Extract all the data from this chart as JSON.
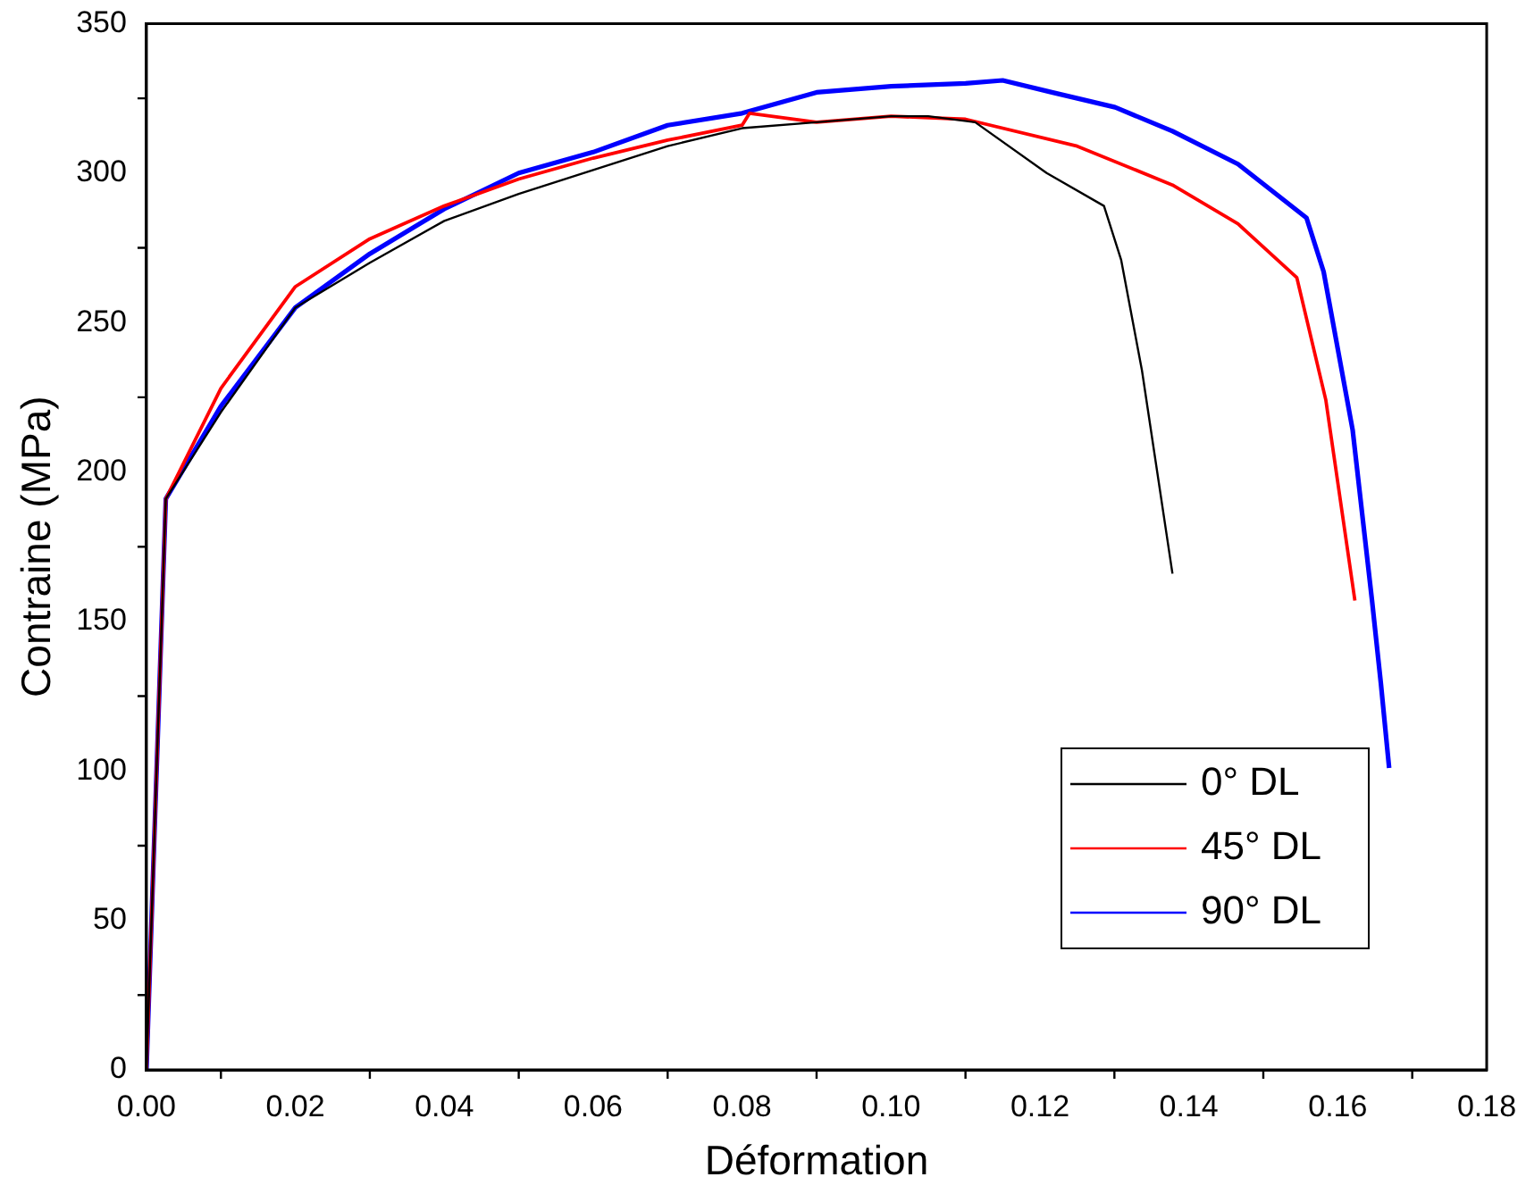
{
  "chart_data": {
    "type": "line",
    "xlabel": "Déformation",
    "ylabel": "Contraine (MPa)",
    "xlim": [
      0,
      0.18
    ],
    "xticks": [
      {
        "value": 0,
        "label": "0.00"
      },
      {
        "value": 0.02,
        "label": "0.02"
      },
      {
        "value": 0.04,
        "label": "0.04"
      },
      {
        "value": 0.06,
        "label": "0.06"
      },
      {
        "value": 0.08,
        "label": "0.08"
      },
      {
        "value": 0.1,
        "label": "0.10"
      },
      {
        "value": 0.12,
        "label": "0.12"
      },
      {
        "value": 0.14,
        "label": "0.14"
      },
      {
        "value": 0.16,
        "label": "0.16"
      },
      {
        "value": 0.18,
        "label": "0.18"
      }
    ],
    "ylim": [
      0,
      350
    ],
    "yticks": [
      0,
      50,
      100,
      150,
      200,
      250,
      300,
      350
    ],
    "grid": false,
    "legend": "bottom right",
    "marker": "none",
    "line_style": "solid",
    "series": [
      {
        "name": "0° DL",
        "color": "#000000",
        "x": [
          0,
          0.0026,
          0.01,
          0.02,
          0.03,
          0.04,
          0.05,
          0.06,
          0.07,
          0.08,
          0.09,
          0.1,
          0.105,
          0.1113,
          0.1209,
          0.1286,
          0.1309,
          0.1337,
          0.1378
        ],
        "values": [
          0,
          191,
          220,
          255,
          270,
          284,
          293,
          301,
          309,
          315,
          317,
          319,
          319,
          317,
          300,
          289,
          271,
          234,
          166
        ]
      },
      {
        "name": "45° DL",
        "color": "#ff0000",
        "x": [
          0,
          0.0026,
          0.01,
          0.02,
          0.03,
          0.04,
          0.05,
          0.06,
          0.07,
          0.08,
          0.081,
          0.09,
          0.1,
          0.11,
          0.125,
          0.1378,
          0.1466,
          0.1545,
          0.1584,
          0.1623
        ],
        "values": [
          0,
          191,
          228,
          262,
          278,
          289,
          298,
          305,
          311,
          316,
          320,
          317,
          319,
          318,
          309,
          296,
          283,
          265,
          224,
          157
        ]
      },
      {
        "name": "90° DL",
        "color": "#0000ff",
        "x": [
          0,
          0.0026,
          0.01,
          0.02,
          0.03,
          0.04,
          0.05,
          0.06,
          0.07,
          0.08,
          0.09,
          0.1,
          0.11,
          0.115,
          0.1216,
          0.1301,
          0.1378,
          0.1466,
          0.1558,
          0.1581,
          0.162,
          0.1646,
          0.1658,
          0.1669
        ],
        "values": [
          0,
          191,
          222,
          255,
          273,
          288,
          300,
          307,
          316,
          320,
          327,
          329,
          330,
          331,
          327,
          322,
          314,
          303,
          285,
          267,
          214,
          157,
          129,
          101
        ]
      }
    ]
  }
}
